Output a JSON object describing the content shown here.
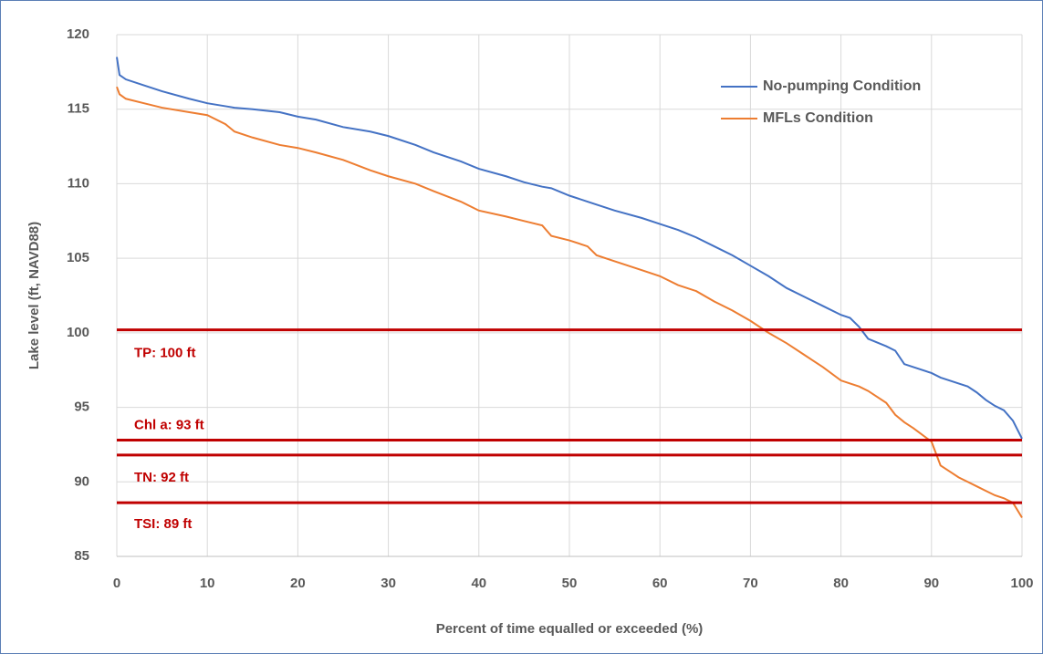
{
  "chart_data": {
    "type": "line",
    "x_label": "Percent of time equalled or exceeded (%)",
    "y_label": "Lake level (ft, NAVD88)",
    "x": [
      0,
      0.3,
      1,
      3,
      5,
      8,
      10,
      12,
      13,
      15,
      18,
      20,
      22,
      25,
      28,
      30,
      33,
      35,
      38,
      40,
      43,
      45,
      47,
      48,
      50,
      52,
      53,
      55,
      58,
      60,
      62,
      64,
      66,
      68,
      70,
      72,
      74,
      76,
      78,
      80,
      81,
      82,
      83,
      85,
      86,
      87,
      88,
      90,
      91,
      92,
      93,
      94,
      95,
      96,
      97,
      98,
      99,
      100
    ],
    "series": [
      {
        "name": "No-pumping Condition",
        "color": "#4472c4",
        "values": [
          118.5,
          117.3,
          117,
          116.6,
          116.2,
          115.7,
          115.4,
          115.2,
          115.1,
          115,
          114.8,
          114.5,
          114.3,
          113.8,
          113.5,
          113.2,
          112.6,
          112.1,
          111.5,
          111,
          110.5,
          110.1,
          109.8,
          109.7,
          109.2,
          108.8,
          108.6,
          108.2,
          107.7,
          107.3,
          106.9,
          106.4,
          105.8,
          105.2,
          104.5,
          103.8,
          103,
          102.4,
          101.8,
          101.2,
          101,
          100.4,
          99.6,
          99.1,
          98.8,
          97.9,
          97.7,
          97.3,
          97,
          96.8,
          96.6,
          96.4,
          96,
          95.5,
          95.1,
          94.8,
          94.1,
          92.9
        ]
      },
      {
        "name": "MFLs Condition",
        "color": "#ed7d31",
        "values": [
          116.5,
          116,
          115.7,
          115.4,
          115.1,
          114.8,
          114.6,
          114,
          113.5,
          113.1,
          112.6,
          112.4,
          112.1,
          111.6,
          110.9,
          110.5,
          110,
          109.5,
          108.8,
          108.2,
          107.8,
          107.5,
          107.2,
          106.5,
          106.2,
          105.8,
          105.2,
          104.8,
          104.2,
          103.8,
          103.2,
          102.8,
          102.1,
          101.5,
          100.8,
          100,
          99.3,
          98.5,
          97.7,
          96.8,
          96.6,
          96.4,
          96.1,
          95.3,
          94.5,
          94,
          93.6,
          92.7,
          91.1,
          90.7,
          90.3,
          90,
          89.7,
          89.4,
          89.1,
          88.9,
          88.6,
          87.6
        ]
      }
    ],
    "reference_lines": [
      {
        "label": "TP: 100 ft",
        "value": 100.2,
        "color": "#c00000"
      },
      {
        "label": "Chl a: 93 ft",
        "value": 92.8,
        "color": "#c00000"
      },
      {
        "label": "TN: 92 ft",
        "value": 91.8,
        "color": "#c00000"
      },
      {
        "label": "TSI: 89 ft",
        "value": 88.6,
        "color": "#c00000"
      }
    ],
    "xlim": [
      0,
      100
    ],
    "xticks": [
      0,
      10,
      20,
      30,
      40,
      50,
      60,
      70,
      80,
      90,
      100
    ],
    "ylim": [
      85,
      120
    ],
    "yticks": [
      85,
      90,
      95,
      100,
      105,
      110,
      115,
      120
    ],
    "grid": true,
    "legend": "upper right"
  }
}
